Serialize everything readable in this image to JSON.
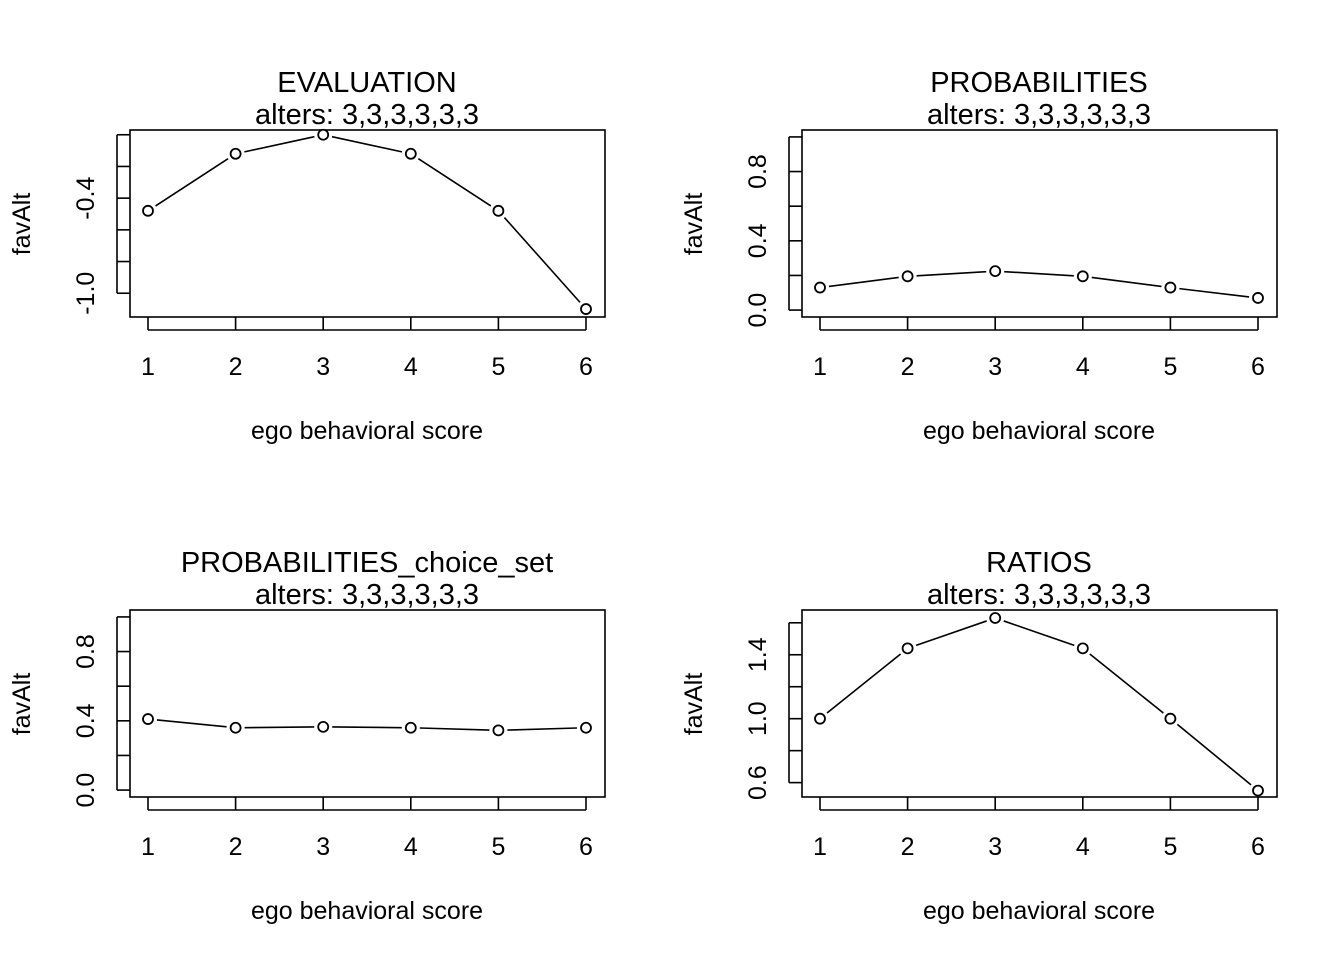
{
  "chart_data": [
    {
      "type": "line",
      "title": "EVALUATION",
      "subtitle": "alters: 3,3,3,3,3,3",
      "xlabel": "ego behavioral score",
      "ylabel": "favAlt",
      "x": [
        1,
        2,
        3,
        4,
        5,
        6
      ],
      "y": [
        -0.48,
        -0.12,
        0.0,
        -0.12,
        -0.48,
        -1.1
      ],
      "ylim": [
        -1.15,
        0.03
      ],
      "yticks": [
        -1.0,
        -0.8,
        -0.6,
        -0.4,
        -0.2,
        0.0
      ],
      "ytick_labels": [
        "-1.0",
        "",
        "",
        "-0.4",
        "",
        ""
      ],
      "grid": false
    },
    {
      "type": "line",
      "title": "PROBABILITIES",
      "subtitle": "alters: 3,3,3,3,3,3",
      "xlabel": "ego behavioral score",
      "ylabel": "favAlt",
      "x": [
        1,
        2,
        3,
        4,
        5,
        6
      ],
      "y": [
        0.13,
        0.195,
        0.225,
        0.195,
        0.13,
        0.07
      ],
      "ylim": [
        -0.04,
        1.04
      ],
      "yticks": [
        0.0,
        0.2,
        0.4,
        0.6,
        0.8,
        1.0
      ],
      "ytick_labels": [
        "0.0",
        "",
        "0.4",
        "",
        "0.8",
        ""
      ],
      "grid": false
    },
    {
      "type": "line",
      "title": "PROBABILITIES_choice_set",
      "subtitle": "alters: 3,3,3,3,3,3",
      "xlabel": "ego behavioral score",
      "ylabel": "favAlt",
      "x": [
        1,
        2,
        3,
        4,
        5,
        6
      ],
      "y": [
        0.41,
        0.36,
        0.365,
        0.36,
        0.345,
        0.36
      ],
      "ylim": [
        -0.04,
        1.04
      ],
      "yticks": [
        0.0,
        0.2,
        0.4,
        0.6,
        0.8,
        1.0
      ],
      "ytick_labels": [
        "0.0",
        "",
        "0.4",
        "",
        "0.8",
        ""
      ],
      "grid": false
    },
    {
      "type": "line",
      "title": "RATIOS",
      "subtitle": "alters: 3,3,3,3,3,3",
      "xlabel": "ego behavioral score",
      "ylabel": "favAlt",
      "x": [
        1,
        2,
        3,
        4,
        5,
        6
      ],
      "y": [
        1.0,
        1.44,
        1.63,
        1.44,
        1.0,
        0.55
      ],
      "ylim": [
        0.51,
        1.68
      ],
      "yticks": [
        0.6,
        0.8,
        1.0,
        1.2,
        1.4,
        1.6
      ],
      "ytick_labels": [
        "0.6",
        "",
        "1.0",
        "",
        "1.4",
        ""
      ],
      "grid": false
    }
  ]
}
